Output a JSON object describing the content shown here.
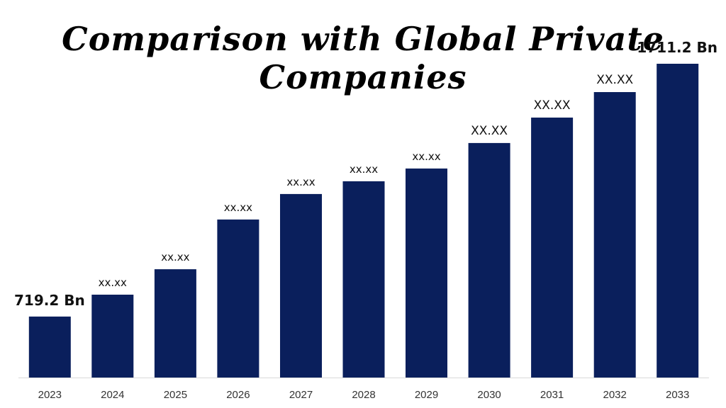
{
  "chart_data": {
    "type": "bar",
    "title": "Comparison with Global Private Companies",
    "xlabel": "",
    "ylabel": "",
    "categories": [
      "2023",
      "2024",
      "2025",
      "2026",
      "2027",
      "2028",
      "2029",
      "2030",
      "2031",
      "2032",
      "2033"
    ],
    "values": [
      719.2,
      805.0,
      905.0,
      1100.0,
      1200.0,
      1250.0,
      1300.0,
      1400.0,
      1500.0,
      1600.0,
      1711.2
    ],
    "data_labels": [
      "719.2 Bn",
      "xx.xx",
      "xx.xx",
      "xx.xx",
      "xx.xx",
      "xx.xx",
      "xx.xx",
      "XX.XX",
      "XX.XX",
      "XX.XX",
      "1711.2 Bn"
    ],
    "ylim": [
      480,
      1800
    ],
    "grid": false,
    "legend": "none",
    "bar_color": "#0a1f5c",
    "axis_color": "#d9d9d9"
  }
}
